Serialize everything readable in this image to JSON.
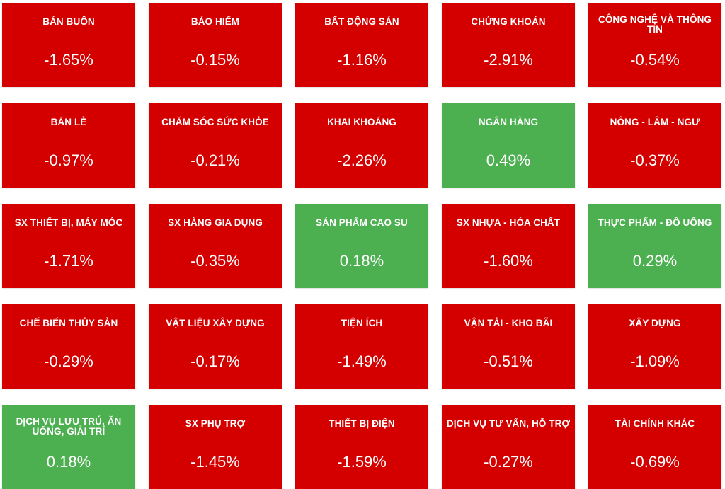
{
  "colors": {
    "negative": "#d40000",
    "positive": "#4caf50",
    "text": "#ffffff"
  },
  "sectors": [
    {
      "name": "BÁN BUÔN",
      "change": "-1.65%",
      "direction": "down"
    },
    {
      "name": "BẢO HIỂM",
      "change": "-0.15%",
      "direction": "down"
    },
    {
      "name": "BẤT ĐỘNG SẢN",
      "change": "-1.16%",
      "direction": "down"
    },
    {
      "name": "CHỨNG KHOÁN",
      "change": "-2.91%",
      "direction": "down"
    },
    {
      "name": "CÔNG NGHỆ VÀ THÔNG TIN",
      "change": "-0.54%",
      "direction": "down"
    },
    {
      "name": "BÁN LẺ",
      "change": "-0.97%",
      "direction": "down"
    },
    {
      "name": "CHĂM SÓC SỨC KHỎE",
      "change": "-0.21%",
      "direction": "down"
    },
    {
      "name": "KHAI KHOÁNG",
      "change": "-2.26%",
      "direction": "down"
    },
    {
      "name": "NGÂN HÀNG",
      "change": "0.49%",
      "direction": "up"
    },
    {
      "name": "NÔNG - LÂM - NGƯ",
      "change": "-0.37%",
      "direction": "down"
    },
    {
      "name": "SX THIẾT BỊ, MÁY MÓC",
      "change": "-1.71%",
      "direction": "down"
    },
    {
      "name": "SX HÀNG GIA DỤNG",
      "change": "-0.35%",
      "direction": "down"
    },
    {
      "name": "SẢN PHẨM CAO SU",
      "change": "0.18%",
      "direction": "up"
    },
    {
      "name": "SX NHỰA - HÓA CHẤT",
      "change": "-1.60%",
      "direction": "down"
    },
    {
      "name": "THỰC PHẨM - ĐỒ UỐNG",
      "change": "0.29%",
      "direction": "up"
    },
    {
      "name": "CHẾ BIẾN THỦY SẢN",
      "change": "-0.29%",
      "direction": "down"
    },
    {
      "name": "VẬT LIỆU XÂY DỰNG",
      "change": "-0.17%",
      "direction": "down"
    },
    {
      "name": "TIỆN ÍCH",
      "change": "-1.49%",
      "direction": "down"
    },
    {
      "name": "VẬN TẢI - KHO BÃI",
      "change": "-0.51%",
      "direction": "down"
    },
    {
      "name": "XÂY DỰNG",
      "change": "-1.09%",
      "direction": "down"
    },
    {
      "name": "DỊCH VỤ LƯU TRÚ, ĂN UỐNG, GIẢI TRÍ",
      "change": "0.18%",
      "direction": "up"
    },
    {
      "name": "SX PHỤ TRỢ",
      "change": "-1.45%",
      "direction": "down"
    },
    {
      "name": "THIẾT BỊ ĐIỆN",
      "change": "-1.59%",
      "direction": "down"
    },
    {
      "name": "DỊCH VỤ TƯ VẤN, HỖ TRỢ",
      "change": "-0.27%",
      "direction": "down"
    },
    {
      "name": "TÀI CHÍNH KHÁC",
      "change": "-0.69%",
      "direction": "down"
    }
  ]
}
